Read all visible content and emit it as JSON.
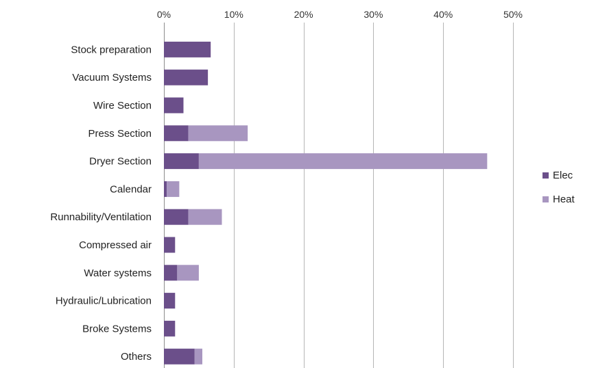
{
  "chart_data": {
    "type": "bar",
    "orientation": "horizontal",
    "stacked": true,
    "title": "",
    "xlabel": "",
    "ylabel": "",
    "xlim": [
      0,
      0.5
    ],
    "x_ticks": [
      {
        "value": 0,
        "label": "0%"
      },
      {
        "value": 0.1,
        "label": "10%"
      },
      {
        "value": 0.2,
        "label": "20%"
      },
      {
        "value": 0.3,
        "label": "30%"
      },
      {
        "value": 0.4,
        "label": "40%"
      },
      {
        "value": 0.5,
        "label": "50%"
      }
    ],
    "x_axis_position": "top",
    "grid": "vertical",
    "legend_position": "right",
    "categories": [
      "Stock preparation",
      "Vacuum Systems",
      "Wire Section",
      "Press Section",
      "Dryer Section",
      "Calendar",
      "Runnability/Ventilation",
      "Compressed air",
      "Water systems",
      "Hydraulic/Lubrication",
      "Broke Systems",
      "Others"
    ],
    "series": [
      {
        "name": "Elec",
        "color": "#6b4f8a",
        "values": [
          0.067,
          0.063,
          0.028,
          0.035,
          0.05,
          0.004,
          0.035,
          0.016,
          0.019,
          0.016,
          0.016,
          0.044
        ]
      },
      {
        "name": "Heat",
        "color": "#a896c0",
        "values": [
          0,
          0,
          0,
          0.085,
          0.413,
          0.018,
          0.048,
          0,
          0.031,
          0,
          0,
          0.011
        ]
      }
    ]
  }
}
